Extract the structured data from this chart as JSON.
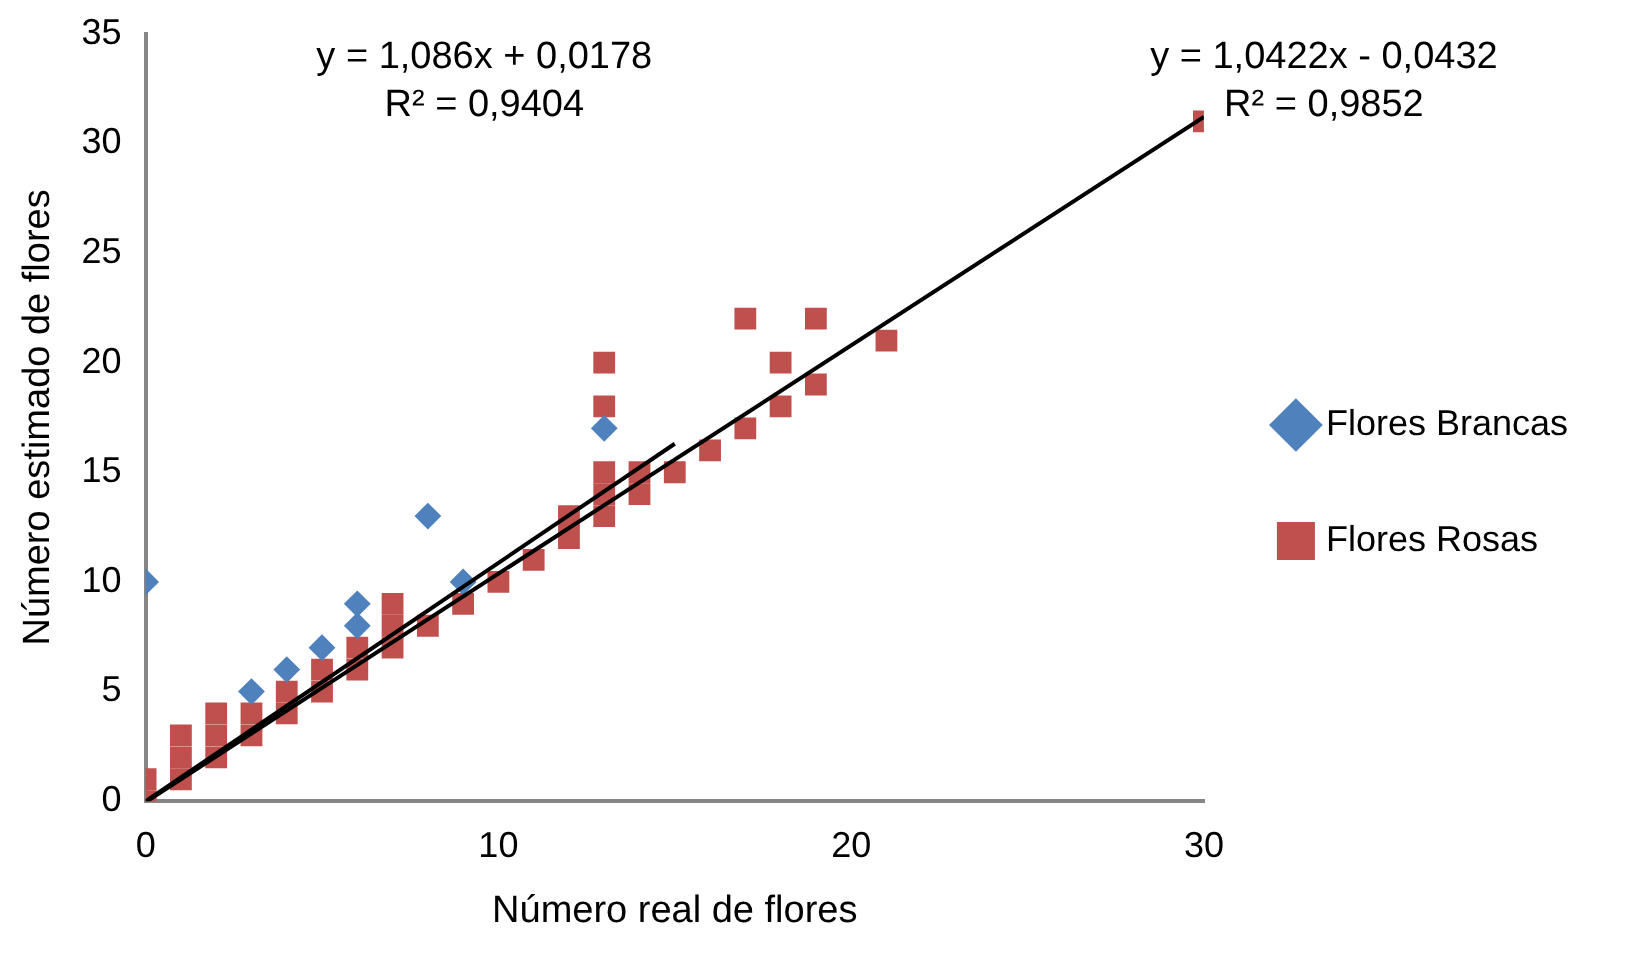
{
  "chart_data": {
    "type": "scatter",
    "xlabel": "Número real de flores",
    "ylabel": "Número estimado de flores",
    "xlim": [
      0,
      30
    ],
    "xticks": [
      0,
      10,
      20,
      30
    ],
    "ylim": [
      0,
      35
    ],
    "yticks": [
      0,
      5,
      10,
      15,
      20,
      25,
      30,
      35
    ],
    "grid": false,
    "legend": "right",
    "series": [
      {
        "name": "Flores Brancas",
        "color": "#4f81bd",
        "marker": "diamond",
        "x": [
          0,
          3,
          4,
          5,
          6,
          6,
          8,
          9,
          13
        ],
        "values": [
          10,
          5,
          6,
          7,
          8,
          9,
          13,
          10,
          17
        ]
      },
      {
        "name": "Flores Rosas",
        "color": "#c0504d",
        "marker": "square",
        "x": [
          0,
          0,
          1,
          1,
          1,
          2,
          2,
          2,
          3,
          3,
          4,
          4,
          5,
          5,
          6,
          6,
          7,
          7,
          7,
          8,
          9,
          10,
          11,
          12,
          12,
          13,
          13,
          13,
          13,
          13,
          14,
          14,
          15,
          16,
          17,
          17,
          18,
          18,
          19,
          19,
          21,
          30
        ],
        "values": [
          0,
          1,
          1,
          2,
          3,
          2,
          3,
          4,
          3,
          4,
          4,
          5,
          5,
          6,
          6,
          7,
          7,
          8,
          9,
          8,
          9,
          10,
          11,
          12,
          13,
          13,
          14,
          15,
          18,
          20,
          14,
          15,
          15,
          16,
          17,
          22,
          18,
          20,
          19,
          22,
          21,
          31
        ]
      },
      {
        "type": "line",
        "color": "#000000",
        "marker": "none",
        "x": [
          0,
          15
        ],
        "values": [
          0,
          16.3
        ]
      },
      {
        "type": "line",
        "color": "#000000",
        "marker": "none",
        "x": [
          0.04,
          30
        ],
        "values": [
          0,
          31.2
        ]
      }
    ],
    "annotations": [
      "y = 1,086x + 0,0178\nR² = 0,9404",
      "y = 1,0422x - 0,0432\nR² = 0,9852"
    ]
  }
}
